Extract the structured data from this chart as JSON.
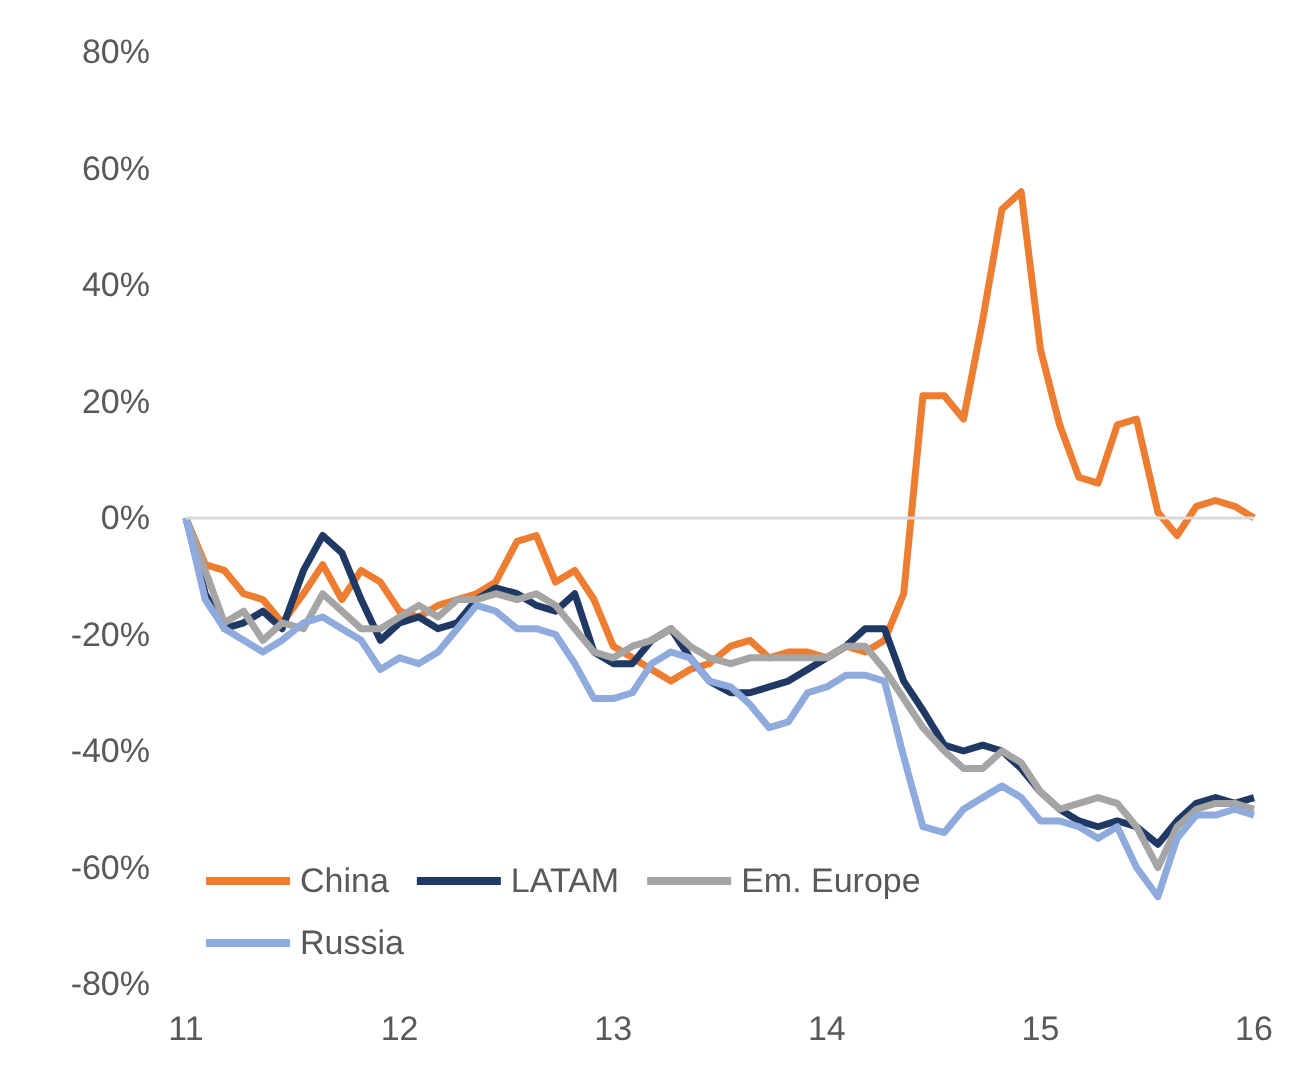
{
  "chart_data": {
    "type": "line",
    "x": [
      11,
      11.09,
      11.18,
      11.27,
      11.36,
      11.45,
      11.55,
      11.64,
      11.73,
      11.82,
      11.91,
      12,
      12.09,
      12.18,
      12.27,
      12.36,
      12.45,
      12.55,
      12.64,
      12.73,
      12.82,
      12.91,
      13,
      13.09,
      13.18,
      13.27,
      13.36,
      13.45,
      13.55,
      13.64,
      13.73,
      13.82,
      13.91,
      14,
      14.09,
      14.18,
      14.27,
      14.36,
      14.45,
      14.55,
      14.64,
      14.73,
      14.82,
      14.91,
      15,
      15.09,
      15.18,
      15.27,
      15.36,
      15.45,
      15.55,
      15.64,
      15.73,
      15.82,
      15.91,
      16
    ],
    "series": [
      {
        "name": "China",
        "color": "#ed7d31",
        "values": [
          0,
          -8,
          -9,
          -13,
          -14,
          -18,
          -13,
          -8,
          -14,
          -9,
          -11,
          -16,
          -17,
          -15,
          -14,
          -13,
          -11,
          -4,
          -3,
          -11,
          -9,
          -14,
          -22,
          -24,
          -26,
          -28,
          -26,
          -25,
          -22,
          -21,
          -24,
          -23,
          -23,
          -24,
          -22,
          -23,
          -21,
          -13,
          21,
          21,
          17,
          34,
          53,
          56,
          29,
          16,
          7,
          6,
          16,
          17,
          1,
          -3,
          2,
          3,
          2,
          0
        ]
      },
      {
        "name": "LATAM",
        "color": "#1f3864",
        "values": [
          0,
          -13,
          -19,
          -18,
          -16,
          -19,
          -9,
          -3,
          -6,
          -14,
          -21,
          -18,
          -17,
          -19,
          -18,
          -14,
          -12,
          -13,
          -15,
          -16,
          -13,
          -23,
          -25,
          -25,
          -21,
          -19,
          -24,
          -28,
          -30,
          -30,
          -29,
          -28,
          -26,
          -24,
          -22,
          -19,
          -19,
          -28,
          -33,
          -39,
          -40,
          -39,
          -40,
          -43,
          -47,
          -50,
          -52,
          -53,
          -52,
          -53,
          -56,
          -52,
          -49,
          -48,
          -49,
          -48
        ]
      },
      {
        "name": "Em. Europe",
        "color": "#a5a5a5",
        "values": [
          0,
          -9,
          -18,
          -16,
          -21,
          -18,
          -19,
          -13,
          -16,
          -19,
          -19,
          -17,
          -15,
          -17,
          -14,
          -14,
          -13,
          -14,
          -13,
          -15,
          -19,
          -23,
          -24,
          -22,
          -21,
          -19,
          -22,
          -24,
          -25,
          -24,
          -24,
          -24,
          -24,
          -24,
          -22,
          -22,
          -26,
          -31,
          -36,
          -40,
          -43,
          -43,
          -40,
          -42,
          -47,
          -50,
          -49,
          -48,
          -49,
          -53,
          -60,
          -53,
          -50,
          -49,
          -49,
          -50
        ]
      },
      {
        "name": "Russia",
        "color": "#8faadc",
        "values": [
          0,
          -14,
          -19,
          -21,
          -23,
          -21,
          -18,
          -17,
          -19,
          -21,
          -26,
          -24,
          -25,
          -23,
          -19,
          -15,
          -16,
          -19,
          -19,
          -20,
          -25,
          -31,
          -31,
          -30,
          -25,
          -23,
          -24,
          -28,
          -29,
          -32,
          -36,
          -35,
          -30,
          -29,
          -27,
          -27,
          -28,
          -41,
          -53,
          -54,
          -50,
          -48,
          -46,
          -48,
          -52,
          -52,
          -53,
          -55,
          -53,
          -60,
          -65,
          -55,
          -51,
          -51,
          -50,
          -51
        ]
      }
    ],
    "xlim": [
      11,
      16
    ],
    "xticks": [
      11,
      12,
      13,
      14,
      15,
      16
    ],
    "ylim": [
      -80,
      80
    ],
    "yticks": [
      {
        "value": -80,
        "label": "-80%"
      },
      {
        "value": -60,
        "label": "-60%"
      },
      {
        "value": -40,
        "label": "-40%"
      },
      {
        "value": -20,
        "label": "-20%"
      },
      {
        "value": 0,
        "label": "0%"
      },
      {
        "value": 20,
        "label": "20%"
      },
      {
        "value": 40,
        "label": "40%"
      },
      {
        "value": 60,
        "label": "60%"
      },
      {
        "value": 80,
        "label": "80%"
      }
    ],
    "ref_lines": [
      {
        "axis": "y",
        "value": 0,
        "color": "#d9d9d9"
      }
    ],
    "grid": false,
    "legend": "bottom left",
    "marker": "none",
    "line_style": "solid"
  }
}
